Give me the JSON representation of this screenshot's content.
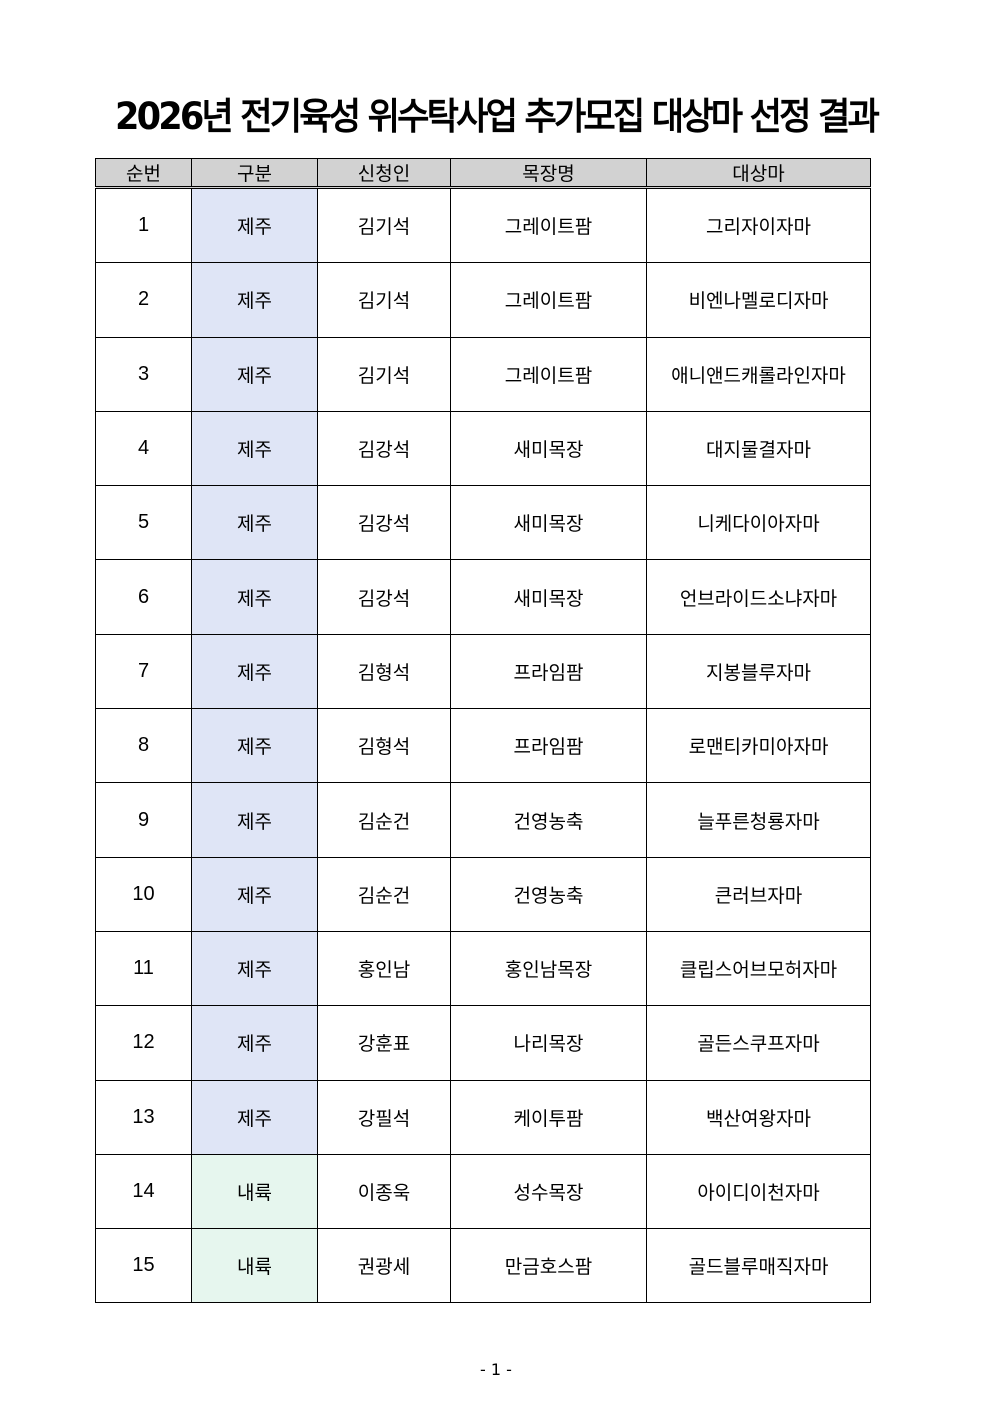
{
  "title": "2026년 전기육성 위수탁사업 추가모집 대상마 선정 결과",
  "colors": {
    "header_bg": "#d2d2d2",
    "jeju_bg": "#dfe5f6",
    "mainland_bg": "#e6f6ee"
  },
  "table": {
    "headers": [
      "순번",
      "구분",
      "신청인",
      "목장명",
      "대상마"
    ],
    "rows": [
      [
        "1",
        "제주",
        "김기석",
        "그레이트팜",
        "그리자이자마"
      ],
      [
        "2",
        "제주",
        "김기석",
        "그레이트팜",
        "비엔나멜로디자마"
      ],
      [
        "3",
        "제주",
        "김기석",
        "그레이트팜",
        "애니앤드캐롤라인자마"
      ],
      [
        "4",
        "제주",
        "김강석",
        "새미목장",
        "대지물결자마"
      ],
      [
        "5",
        "제주",
        "김강석",
        "새미목장",
        "니케다이아자마"
      ],
      [
        "6",
        "제주",
        "김강석",
        "새미목장",
        "언브라이드소냐자마"
      ],
      [
        "7",
        "제주",
        "김형석",
        "프라임팜",
        "지봉블루자마"
      ],
      [
        "8",
        "제주",
        "김형석",
        "프라임팜",
        "로맨티카미아자마"
      ],
      [
        "9",
        "제주",
        "김순건",
        "건영농축",
        "늘푸른청룡자마"
      ],
      [
        "10",
        "제주",
        "김순건",
        "건영농축",
        "큰러브자마"
      ],
      [
        "11",
        "제주",
        "홍인남",
        "홍인남목장",
        "클립스어브모허자마"
      ],
      [
        "12",
        "제주",
        "강훈표",
        "나리목장",
        "골든스쿠프자마"
      ],
      [
        "13",
        "제주",
        "강필석",
        "케이투팜",
        "백산여왕자마"
      ],
      [
        "14",
        "내륙",
        "이종욱",
        "성수목장",
        "아이디이천자마"
      ],
      [
        "15",
        "내륙",
        "권광세",
        "만금호스팜",
        "골드블루매직자마"
      ]
    ]
  },
  "page_number": "- 1 -"
}
